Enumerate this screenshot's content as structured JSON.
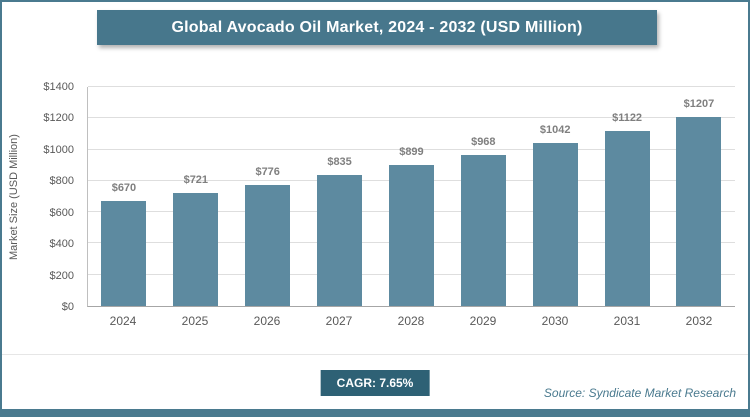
{
  "header": {
    "title": "Global Avocado Oil Market, 2024 - 2032 (USD Million)"
  },
  "colors": {
    "bar": "#5d8aa0",
    "header_bg": "#47778c",
    "frame_border": "#4a7a8f",
    "cagr_bg": "#2e6175",
    "grid": "#dedede",
    "value_label": "#7f7f7f",
    "axis_text": "#595959",
    "source_text": "#4a7a8f"
  },
  "chart_data": {
    "type": "bar",
    "title": "Global Avocado Oil Market, 2024 - 2032 (USD Million)",
    "categories": [
      "2024",
      "2025",
      "2026",
      "2027",
      "2028",
      "2029",
      "2030",
      "2031",
      "2032"
    ],
    "values": [
      670,
      721,
      776,
      835,
      899,
      968,
      1042,
      1122,
      1207
    ],
    "value_labels": [
      "$670",
      "$721",
      "$776",
      "$835",
      "$899",
      "$968",
      "$1042",
      "$1122",
      "$1207"
    ],
    "xlabel": "",
    "ylabel": "Market Size (USD Million)",
    "ylim": [
      0,
      1400
    ],
    "ytick_step": 200,
    "ytick_labels": [
      "$0",
      "$200",
      "$400",
      "$600",
      "$800",
      "$1000",
      "$1200",
      "$1400"
    ],
    "grid": "horizontal",
    "legend_position": "none"
  },
  "footer": {
    "cagr_label": "CAGR: 7.65%",
    "source": "Source: Syndicate Market Research"
  }
}
